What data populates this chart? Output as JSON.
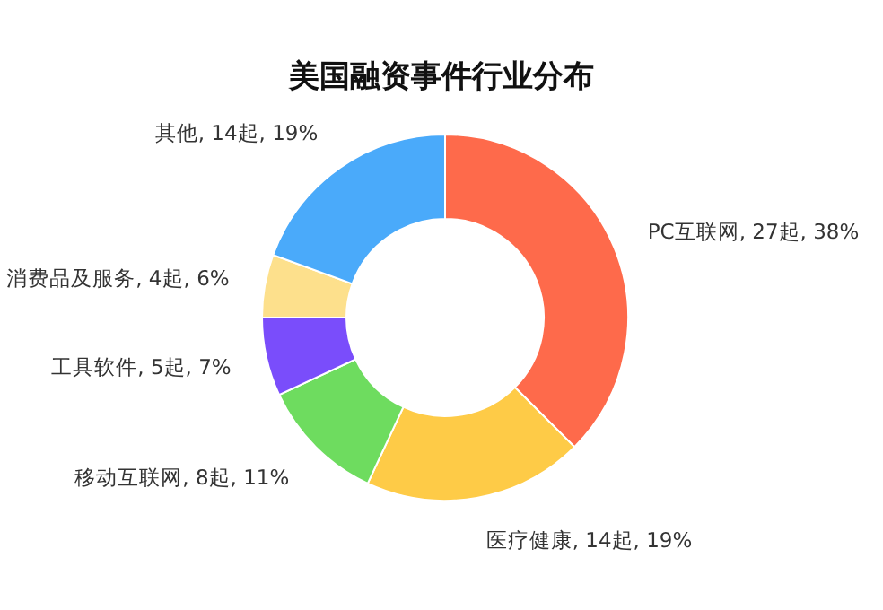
{
  "chart_data": {
    "type": "donut",
    "title": "美国融资事件行业分布",
    "categories": [
      "PC互联网, 27起, 38%",
      "医疗健康, 14起, 19%",
      "移动互联网, 8起, 11%",
      "工具软件, 5起, 7%",
      "消费品及服务, 4起, 6%",
      "其他, 14起, 19%"
    ],
    "values": [
      27,
      14,
      8,
      5,
      4,
      14
    ],
    "colors": [
      "#fe6a4b",
      "#fecb47",
      "#6edc5f",
      "#7a4dfb",
      "#fde08c",
      "#4aaafa"
    ]
  }
}
